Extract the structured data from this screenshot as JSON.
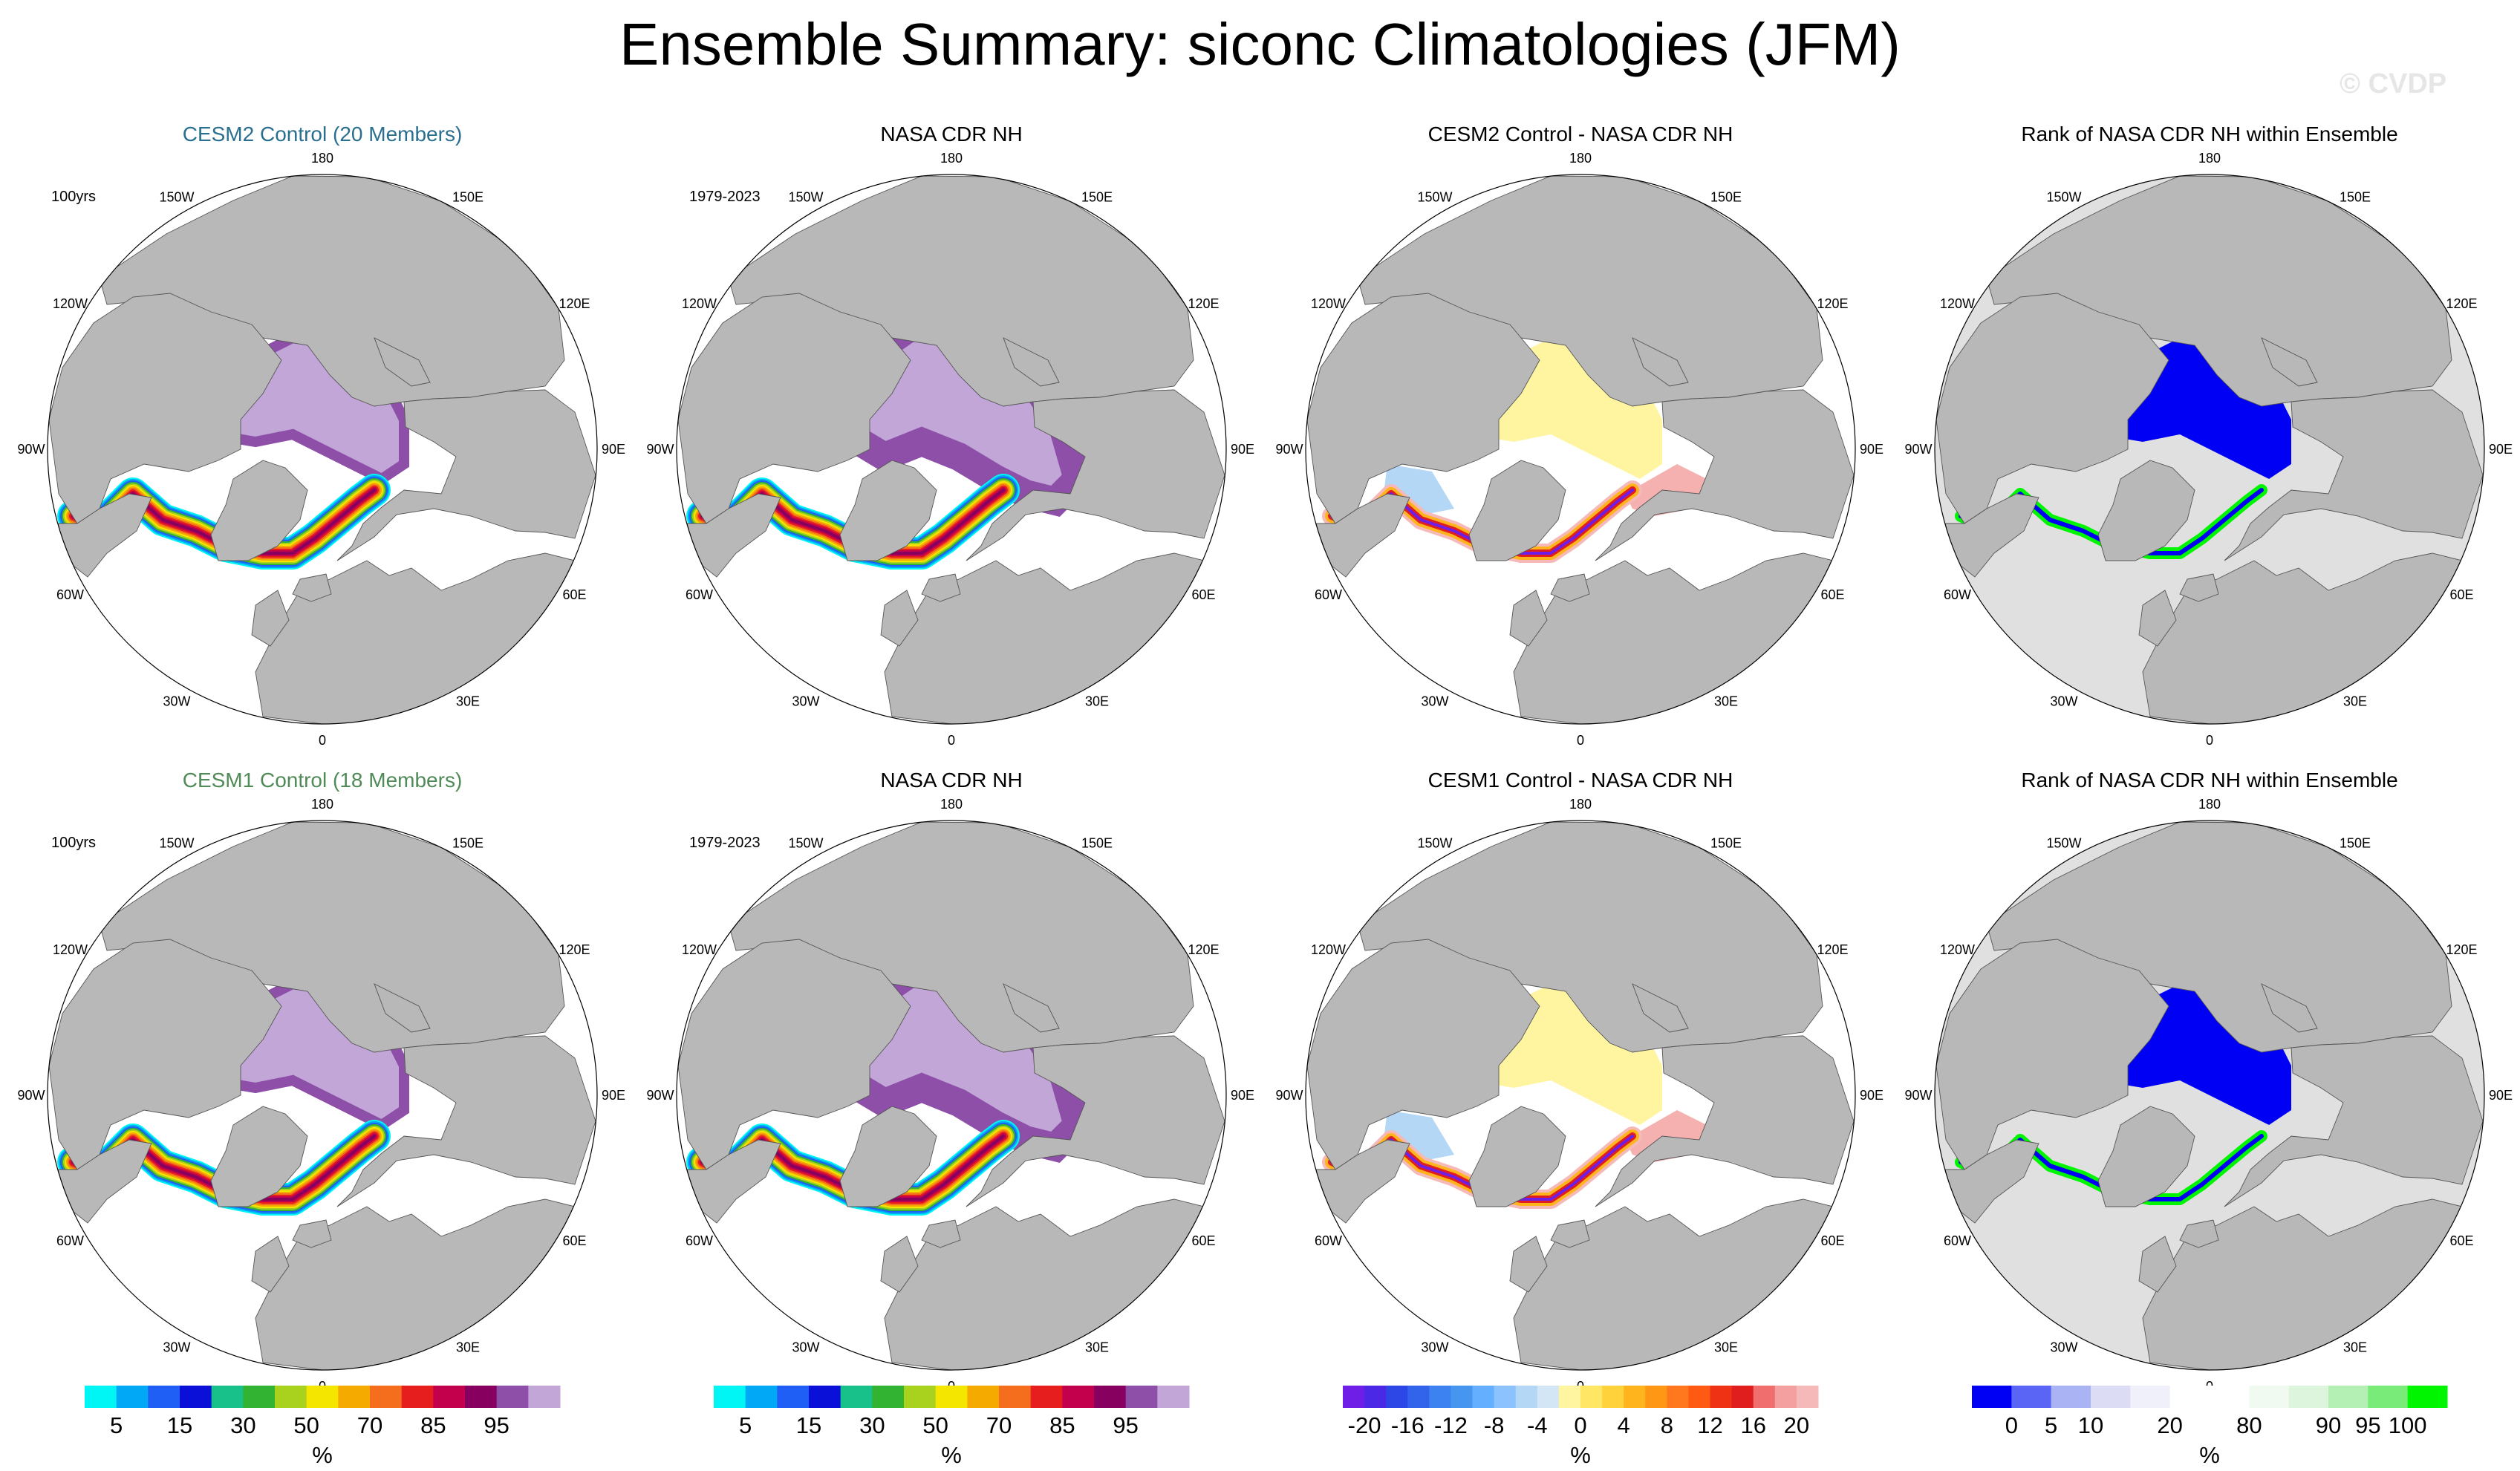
{
  "title": "Ensemble Summary: siconc Climatologies (JFM)",
  "watermark": "© CVDP",
  "lon_labels": [
    "180",
    "150E",
    "120E",
    "90E",
    "60E",
    "30E",
    "0",
    "30W",
    "60W",
    "90W",
    "120W",
    "150W"
  ],
  "colors": {
    "land": "#b8b8b8",
    "ocean": "#ffffff",
    "ice_interior": "#c2a6d8",
    "ice_dark": "#8d4fa8"
  },
  "panels": [
    {
      "row": 0,
      "col": 0,
      "title": "CESM2 Control (20 Members)",
      "title_style": "c2",
      "period": "100yrs",
      "kind": "clim",
      "variant": "cesm2"
    },
    {
      "row": 0,
      "col": 1,
      "title": "NASA CDR NH",
      "title_style": "plain",
      "period": "1979-2023",
      "kind": "clim",
      "variant": "obs"
    },
    {
      "row": 0,
      "col": 2,
      "title": "CESM2 Control - NASA CDR NH",
      "title_style": "plain",
      "period": "",
      "kind": "diff",
      "variant": "cesm2"
    },
    {
      "row": 0,
      "col": 3,
      "title": "Rank of NASA CDR NH within Ensemble",
      "title_style": "plain",
      "period": "",
      "kind": "rank",
      "variant": "cesm2"
    },
    {
      "row": 1,
      "col": 0,
      "title": "CESM1 Control (18 Members)",
      "title_style": "c1",
      "period": "100yrs",
      "kind": "clim",
      "variant": "cesm1"
    },
    {
      "row": 1,
      "col": 1,
      "title": "NASA CDR NH",
      "title_style": "plain",
      "period": "1979-2023",
      "kind": "clim",
      "variant": "obs"
    },
    {
      "row": 1,
      "col": 2,
      "title": "CESM1 Control - NASA CDR NH",
      "title_style": "plain",
      "period": "",
      "kind": "diff",
      "variant": "cesm1"
    },
    {
      "row": 1,
      "col": 3,
      "title": "Rank of NASA CDR NH within Ensemble",
      "title_style": "plain",
      "period": "",
      "kind": "rank",
      "variant": "cesm1"
    }
  ],
  "colorbars": [
    {
      "id": "clim1",
      "unit": "%",
      "labels": [
        "5",
        "15",
        "30",
        "50",
        "70",
        "85",
        "95"
      ],
      "label_at_boundary": [
        1,
        3,
        5,
        7,
        9,
        11,
        13
      ],
      "colors": [
        "#00f5f5",
        "#00a8f5",
        "#1f5ff5",
        "#0a10d8",
        "#18c08a",
        "#32b432",
        "#a8d21e",
        "#f5e600",
        "#f5aa00",
        "#f56e1e",
        "#e61e1e",
        "#c3004b",
        "#870060",
        "#8d4fa8",
        "#c2a6d8"
      ]
    },
    {
      "id": "clim2",
      "unit": "%",
      "labels": [
        "5",
        "15",
        "30",
        "50",
        "70",
        "85",
        "95"
      ],
      "label_at_boundary": [
        1,
        3,
        5,
        7,
        9,
        11,
        13
      ],
      "colors": [
        "#00f5f5",
        "#00a8f5",
        "#1f5ff5",
        "#0a10d8",
        "#18c08a",
        "#32b432",
        "#a8d21e",
        "#f5e600",
        "#f5aa00",
        "#f56e1e",
        "#e61e1e",
        "#c3004b",
        "#870060",
        "#8d4fa8",
        "#c2a6d8"
      ]
    },
    {
      "id": "diff",
      "unit": "%",
      "labels": [
        "-20",
        "-16",
        "-12",
        "-8",
        "-4",
        "0",
        "4",
        "8",
        "12",
        "16",
        "20"
      ],
      "label_at_boundary": [
        1,
        3,
        5,
        7,
        9,
        11,
        13,
        15,
        17,
        19,
        21
      ],
      "colors": [
        "#6e1ee6",
        "#4b28e6",
        "#2d46e6",
        "#3264eb",
        "#3c82f0",
        "#4696f0",
        "#64afff",
        "#8cc3ff",
        "#b4d7f5",
        "#d2e6f5",
        "#fff5a0",
        "#ffe664",
        "#ffd23c",
        "#ffb41e",
        "#ff9614",
        "#ff781e",
        "#ff5a14",
        "#f03214",
        "#e11e1e",
        "#f06e6e",
        "#f5a0a0",
        "#f5b9b9"
      ]
    },
    {
      "id": "rank",
      "unit": "%",
      "labels": [
        "0",
        "5",
        "10",
        "20",
        "80",
        "90",
        "95",
        "100"
      ],
      "label_at_boundary": [
        1,
        2,
        3,
        5,
        7,
        9,
        10,
        11
      ],
      "colors": [
        "#0000f5",
        "#5a64f5",
        "#aab4f5",
        "#dcdcf5",
        "#f0f0fa",
        "#ffffff",
        "#ffffff",
        "#f0faf0",
        "#dcf5dc",
        "#b4f0b4",
        "#78eb78",
        "#00f500"
      ]
    }
  ]
}
